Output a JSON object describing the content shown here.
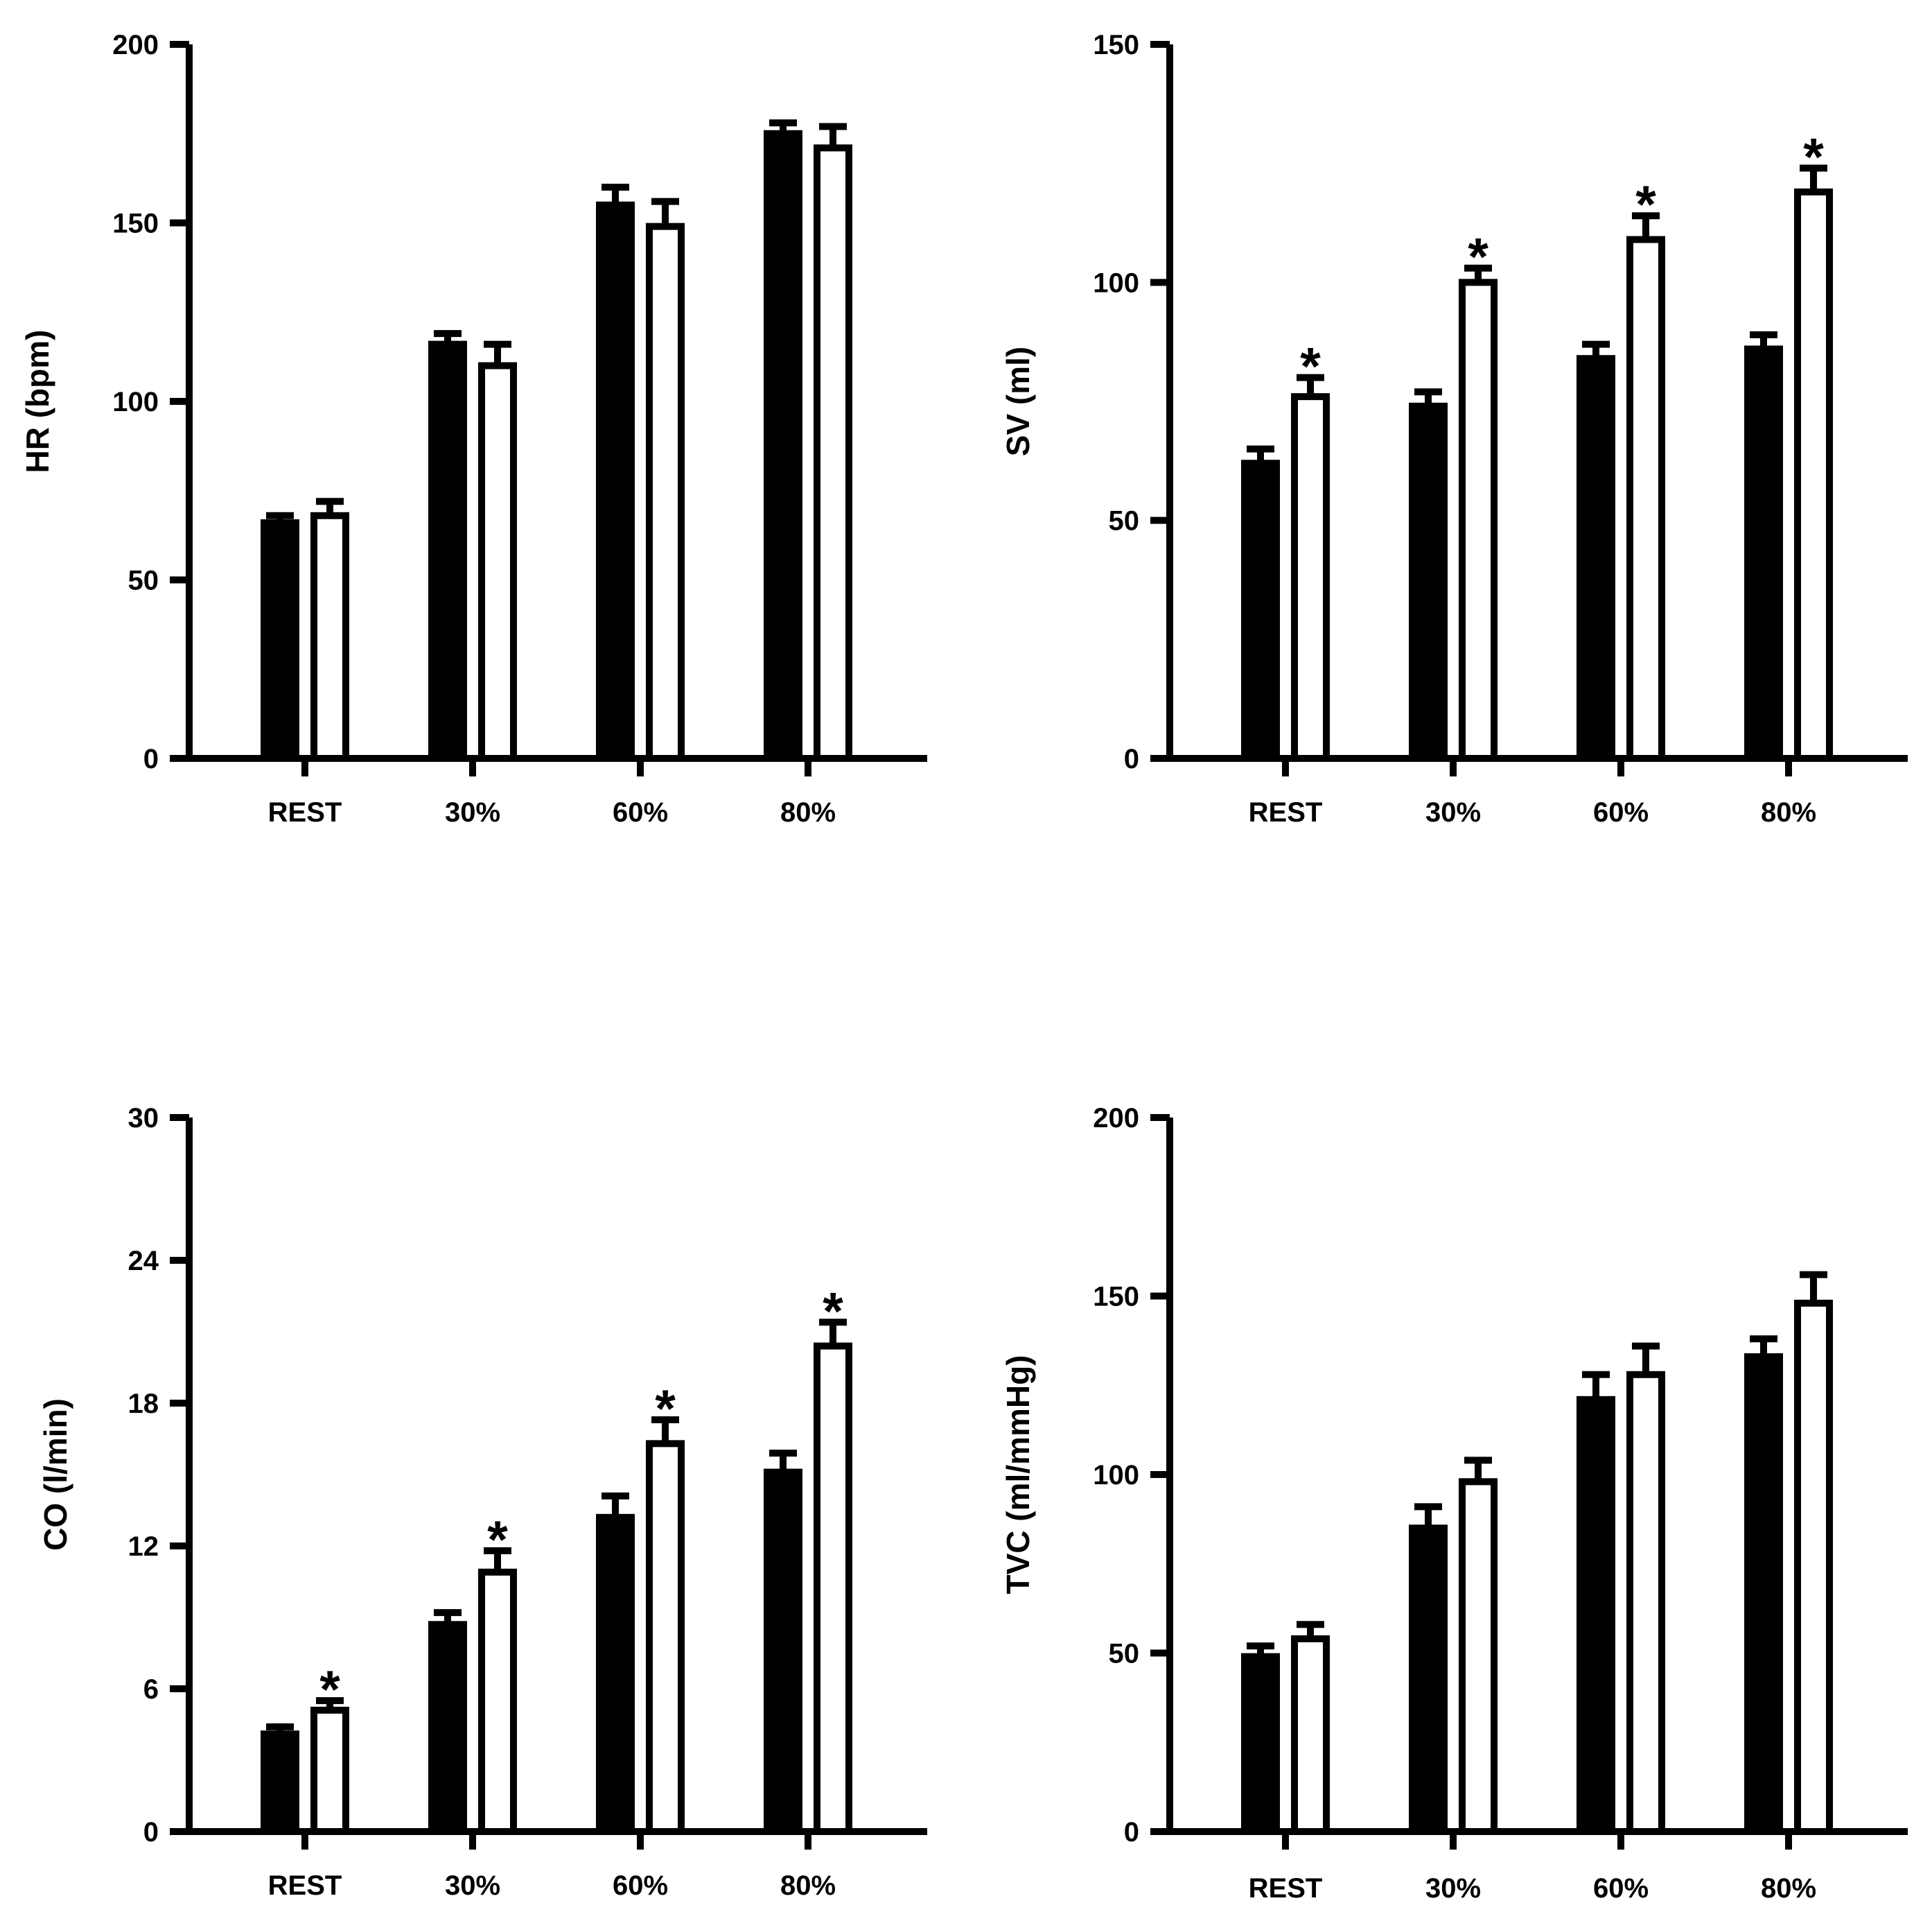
{
  "colors": {
    "ink": "#000000",
    "paper": "#ffffff"
  },
  "chart_data": [
    {
      "id": "hr",
      "type": "bar",
      "ylabel": "HR (bpm)",
      "categories": [
        "REST",
        "30%",
        "60%",
        "80%"
      ],
      "ylim": [
        0,
        200
      ],
      "yticks": [
        0,
        50,
        100,
        150,
        200
      ],
      "series": [
        {
          "name": "filled",
          "values": [
            66,
            116,
            155,
            175
          ],
          "errors": [
            2,
            3,
            5,
            3
          ]
        },
        {
          "name": "open",
          "values": [
            68,
            110,
            149,
            171
          ],
          "errors": [
            4,
            6,
            7,
            6
          ]
        }
      ],
      "significant": [
        false,
        false,
        false,
        false
      ]
    },
    {
      "id": "sv",
      "type": "bar",
      "ylabel": "SV (ml)",
      "categories": [
        "REST",
        "30%",
        "60%",
        "80%"
      ],
      "ylim": [
        0,
        150
      ],
      "yticks": [
        0,
        50,
        100,
        150
      ],
      "series": [
        {
          "name": "filled",
          "values": [
            62,
            74,
            84,
            86
          ],
          "errors": [
            3,
            3,
            3,
            3
          ]
        },
        {
          "name": "open",
          "values": [
            76,
            100,
            109,
            119
          ],
          "errors": [
            4,
            3,
            5,
            5
          ]
        }
      ],
      "significant": [
        true,
        true,
        true,
        true
      ],
      "annotation": "*"
    },
    {
      "id": "co",
      "type": "bar",
      "ylabel": "CO (l/min)",
      "categories": [
        "REST",
        "30%",
        "60%",
        "80%"
      ],
      "ylim": [
        0,
        30
      ],
      "yticks": [
        0,
        6,
        12,
        18,
        24,
        30
      ],
      "series": [
        {
          "name": "filled",
          "values": [
            4.1,
            8.7,
            13.2,
            15.1
          ],
          "errors": [
            0.3,
            0.5,
            0.9,
            0.8
          ]
        },
        {
          "name": "open",
          "values": [
            5.1,
            10.9,
            16.3,
            20.4
          ],
          "errors": [
            0.4,
            0.9,
            1.0,
            1.0
          ]
        }
      ],
      "significant": [
        true,
        true,
        true,
        true
      ],
      "annotation": "*"
    },
    {
      "id": "tvc",
      "type": "bar",
      "ylabel": "TVC (ml/mmHg)",
      "categories": [
        "REST",
        "30%",
        "60%",
        "80%"
      ],
      "ylim": [
        0,
        200
      ],
      "yticks": [
        0,
        50,
        100,
        150,
        200
      ],
      "series": [
        {
          "name": "filled",
          "values": [
            49,
            85,
            121,
            133
          ],
          "errors": [
            3,
            6,
            7,
            5
          ]
        },
        {
          "name": "open",
          "values": [
            54,
            98,
            128,
            148
          ],
          "errors": [
            4,
            6,
            8,
            8
          ]
        }
      ],
      "significant": [
        false,
        false,
        false,
        false
      ]
    }
  ]
}
